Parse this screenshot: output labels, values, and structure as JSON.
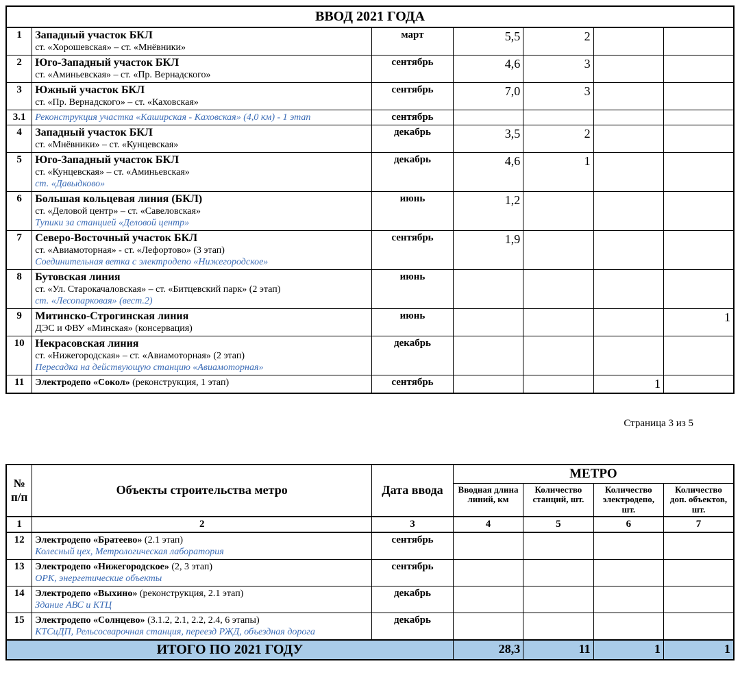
{
  "title1": "ВВОД 2021 ГОДА",
  "rows1": [
    {
      "n": "1",
      "t": "Западный участок БКЛ",
      "s": "ст. «Хорошевская» – ст. «Мнёвники»",
      "note": "",
      "d": "март",
      "len": "5,5",
      "stn": "2",
      "depo": "",
      "dop": ""
    },
    {
      "n": "2",
      "t": "Юго-Западный участок БКЛ",
      "s": "ст. «Аминьевская» – ст. «Пр. Вернадского»",
      "note": "",
      "d": "сентябрь",
      "len": "4,6",
      "stn": "3",
      "depo": "",
      "dop": ""
    },
    {
      "n": "3",
      "t": "Южный участок БКЛ",
      "s": "ст. «Пр. Вернадского» – ст. «Каховская»",
      "note": "",
      "d": "сентябрь",
      "len": "7,0",
      "stn": "3",
      "depo": "",
      "dop": ""
    },
    {
      "n": "3.1",
      "t": "",
      "s": "",
      "note": "Реконструкция участка «Каширская - Каховская» (4,0 км) - 1 этап",
      "d": "сентябрь",
      "len": "",
      "stn": "",
      "depo": "",
      "dop": ""
    },
    {
      "n": "4",
      "t": "Западный участок БКЛ",
      "s": "ст. «Мнёвники» – ст. «Кунцевская»",
      "note": "",
      "d": "декабрь",
      "len": "3,5",
      "stn": "2",
      "depo": "",
      "dop": ""
    },
    {
      "n": "5",
      "t": "Юго-Западный участок БКЛ",
      "s": "ст. «Кунцевская» – ст. «Аминьевская»",
      "note": "ст. «Давыдково»",
      "d": "декабрь",
      "len": "4,6",
      "stn": "1",
      "depo": "",
      "dop": ""
    },
    {
      "n": "6",
      "t": "Большая кольцевая линия (БКЛ)",
      "s": "ст. «Деловой центр» – ст. «Савеловская»",
      "note": "Тупики за станцией «Деловой центр»",
      "d": "июнь",
      "len": "1,2",
      "stn": "",
      "depo": "",
      "dop": ""
    },
    {
      "n": "7",
      "t": "Северо-Восточный участок БКЛ",
      "s": "ст. «Авиамоторная» - ст. «Лефортово» (3 этап)",
      "note": "Соединительная ветка с электродепо «Нижегородское»",
      "d": "сентябрь",
      "len": "1,9",
      "stn": "",
      "depo": "",
      "dop": ""
    },
    {
      "n": "8",
      "t": "Бутовская линия",
      "s": "ст. «Ул. Старокачаловская» – ст. «Битцевский парк» (2 этап)",
      "note": "ст. «Лесопарковая» (вест.2)",
      "d": "июнь",
      "len": "",
      "stn": "",
      "depo": "",
      "dop": ""
    },
    {
      "n": "9",
      "t": "Митинско-Строгинская линия",
      "s": "ДЭС и ФВУ «Минская» (консервация)",
      "note": "",
      "d": "июнь",
      "len": "",
      "stn": "",
      "depo": "",
      "dop": "1"
    },
    {
      "n": "10",
      "t": "Некрасовская линия",
      "s": "ст. «Нижегородская» – ст. «Авиамоторная» (2 этап)",
      "note": "Пересадка на действующую станцию «Авиамоторная»",
      "d": "декабрь",
      "len": "",
      "stn": "",
      "depo": "",
      "dop": ""
    },
    {
      "n": "11",
      "t": "",
      "s": "",
      "inline": "<b>Электродепо «Сокол»</b> (реконструкция, 1 этап)",
      "note": "",
      "d": "сентябрь",
      "len": "",
      "stn": "",
      "depo": "1",
      "dop": ""
    }
  ],
  "page": "Страница  3 из 5",
  "hdr": {
    "n": "№ п/п",
    "obj": "Объекты строительства метро",
    "date": "Дата ввода",
    "metro": "МЕТРО",
    "len": "Вводная длина линий, км",
    "stn": "Количество станций, шт.",
    "depo": "Количество электродепо, шт.",
    "dop": "Количество доп. объектов, шт."
  },
  "colnums": {
    "n": "1",
    "obj": "2",
    "date": "3",
    "len": "4",
    "stn": "5",
    "depo": "6",
    "dop": "7"
  },
  "rows2": [
    {
      "n": "12",
      "inline": "<b>Электродепо «Братеево»</b> (2.1 этап)",
      "note": "Колесный цех, Метрологическая лаборатория",
      "d": "сентябрь"
    },
    {
      "n": "13",
      "inline": "<b>Электродепо «Нижегородское»</b> (2, 3 этап)",
      "note": "ОРК, энергетические объекты",
      "d": "сентябрь"
    },
    {
      "n": "14",
      "inline": "<b>Электродепо «Выхино»</b> (реконструкция, 2.1 этап)",
      "note": "Здание АВС и КТЦ",
      "d": "декабрь"
    },
    {
      "n": "15",
      "inline": "<b>Электродепо «Солнцево»</b> (3.1.2, 2.1, 2.2, 2.4, 6 этапы)",
      "note": "КТСиДП, Рельсосварочная станция, переезд РЖД, объездная дорога",
      "d": "декабрь"
    }
  ],
  "total": {
    "label": "ИТОГО ПО 2021 ГОДУ",
    "len": "28,3",
    "stn": "11",
    "depo": "1",
    "dop": "1"
  },
  "colors": {
    "highlight": "#a9cbe8",
    "note": "#3a6bb5"
  }
}
